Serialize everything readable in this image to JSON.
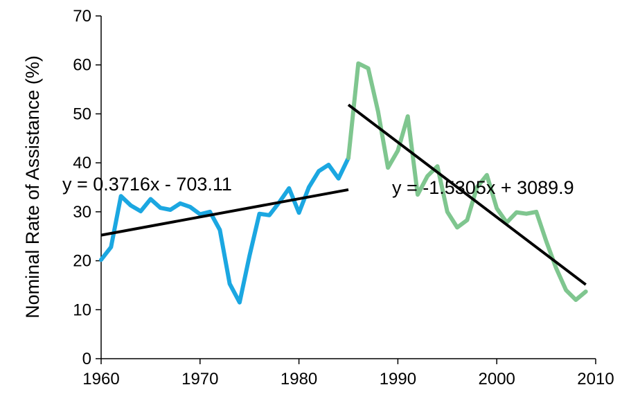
{
  "chart_data": {
    "type": "line",
    "title": "",
    "xlabel": "",
    "ylabel": "Nominal Rate of Assistance (%)",
    "xlim": [
      1960,
      2010
    ],
    "ylim": [
      0,
      70
    ],
    "x_ticks": [
      1960,
      1970,
      1980,
      1990,
      2000,
      2010
    ],
    "y_ticks": [
      0,
      10,
      20,
      30,
      40,
      50,
      60,
      70
    ],
    "grid": false,
    "legend": "none",
    "series": [
      {
        "color": "#1ba7e1",
        "x": [
          1960,
          1961,
          1962,
          1963,
          1964,
          1965,
          1966,
          1967,
          1968,
          1969,
          1970,
          1971,
          1972,
          1973,
          1974,
          1975,
          1976,
          1977,
          1978,
          1979,
          1980,
          1981,
          1982,
          1983,
          1984,
          1985
        ],
        "y": [
          20.2,
          22.8,
          33.2,
          31.3,
          30.1,
          32.6,
          30.8,
          30.4,
          31.7,
          31.0,
          29.5,
          30.0,
          26.3,
          15.3,
          11.5,
          21.0,
          29.6,
          29.3,
          31.9,
          34.8,
          29.8,
          35.0,
          38.3,
          39.6,
          36.8,
          41.0
        ]
      },
      {
        "color": "#7fc68f",
        "x": [
          1985,
          1986,
          1987,
          1988,
          1989,
          1990,
          1991,
          1992,
          1993,
          1994,
          1995,
          1996,
          1997,
          1998,
          1999,
          2000,
          2001,
          2002,
          2003,
          2004,
          2005,
          2006,
          2007,
          2008,
          2009
        ],
        "y": [
          41.0,
          60.3,
          59.3,
          50.5,
          39.0,
          42.5,
          49.5,
          33.5,
          37.3,
          39.3,
          30.0,
          26.8,
          28.3,
          35.0,
          37.5,
          30.7,
          27.8,
          29.9,
          29.6,
          30.0,
          24.0,
          18.5,
          14.0,
          12.0,
          13.7
        ]
      }
    ],
    "trendlines": [
      {
        "equation": "y = 0.3716x - 703.11",
        "slope": 0.3716,
        "intercept": -703.11,
        "x_range": [
          1960,
          1985
        ],
        "color": "#000000"
      },
      {
        "equation": "y = -1.5305x + 3089.9",
        "slope": -1.5305,
        "intercept": 3089.9,
        "x_range": [
          1985,
          2009
        ],
        "color": "#000000"
      }
    ]
  }
}
